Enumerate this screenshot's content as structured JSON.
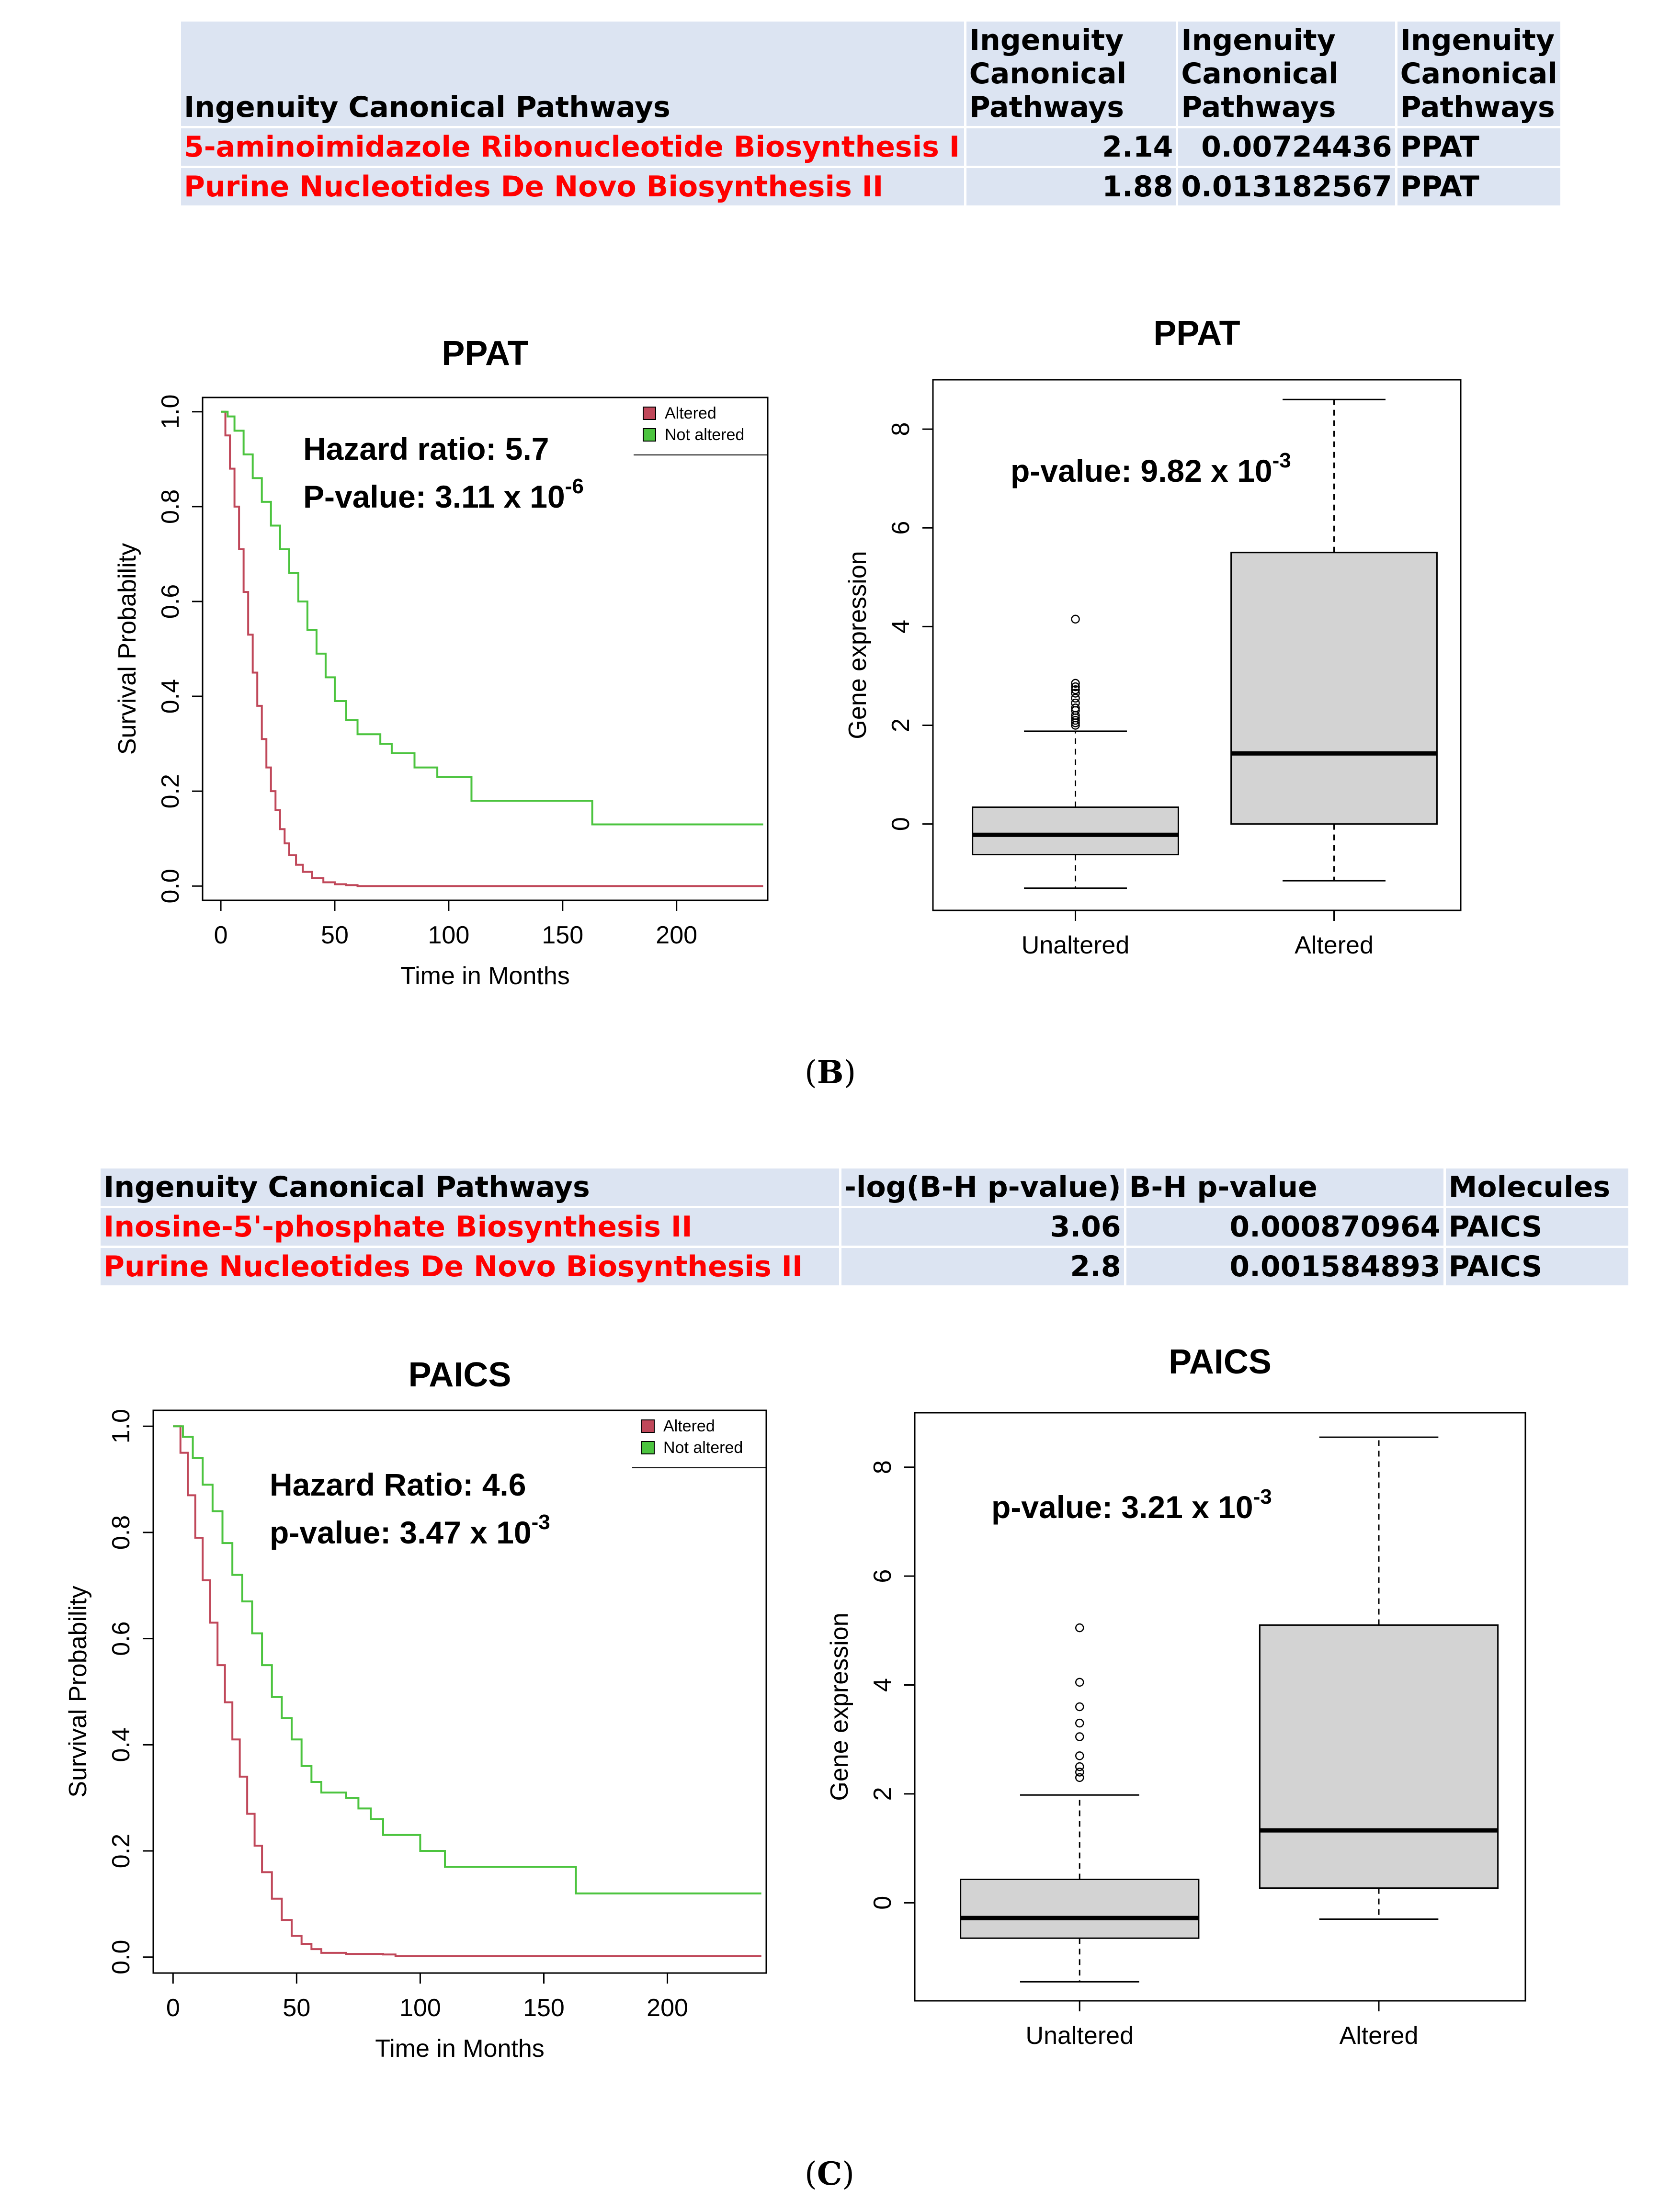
{
  "table_b": {
    "headers": [
      "Ingenuity Canonical Pathways",
      "Ingenuity\nCanonical\nPathways",
      "Ingenuity\nCanonical\nPathways",
      "Ingenuity\nCanonical\nPathways"
    ],
    "header_lines": {
      "col1": [
        "Ingenuity",
        "Canonical",
        "Pathways"
      ],
      "col2": [
        "Ingenuity",
        "Canonical",
        "Pathways"
      ],
      "col3": [
        "Ingenuity",
        "Canonical",
        "Pathways"
      ]
    },
    "rows": [
      {
        "pathway": "5-aminoimidazole Ribonucleotide Biosynthesis I",
        "score": "2.14",
        "pvalue": "0.00724436",
        "molecules": "PPAT"
      },
      {
        "pathway": "Purine Nucleotides De Novo Biosynthesis II",
        "score": "1.88",
        "pvalue": "0.013182567",
        "molecules": "PPAT"
      }
    ]
  },
  "table_c": {
    "headers": [
      "Ingenuity Canonical Pathways",
      "-log(B-H p-value)",
      "B-H p-value",
      "Molecules"
    ],
    "rows": [
      {
        "pathway": "Inosine-5'-phosphate Biosynthesis II",
        "score": "3.06",
        "pvalue": "0.000870964",
        "molecules": "PAICS"
      },
      {
        "pathway": "Purine Nucleotides De Novo Biosynthesis II",
        "score": "2.8",
        "pvalue": "0.001584893",
        "molecules": "PAICS"
      }
    ]
  },
  "labels": {
    "panel_b": "(B)",
    "panel_c": "(C)",
    "panel_b_letter": "B",
    "panel_c_letter": "C"
  },
  "colors": {
    "altered": "#c0485a",
    "not_altered": "#4cc43f",
    "box_fill": "#d3d3d3",
    "highlight_text": "#ff0000",
    "table_bg": "#dce4f2"
  },
  "chart_data": [
    {
      "id": "ppat_km",
      "type": "line",
      "title": "PPAT",
      "xlabel": "Time in Months",
      "ylabel": "Survival Probability",
      "xlim": [
        -8,
        240
      ],
      "ylim": [
        -0.03,
        1.03
      ],
      "x_ticks": [
        "0",
        "50",
        "100",
        "150",
        "200"
      ],
      "x_tick_values": [
        0,
        50,
        100,
        150,
        200
      ],
      "y_ticks": [
        "0.0",
        "0.2",
        "0.4",
        "0.6",
        "0.8",
        "1.0"
      ],
      "y_tick_values": [
        0,
        0.2,
        0.4,
        0.6,
        0.8,
        1.0
      ],
      "legend": [
        "Altered",
        "Not altered"
      ],
      "legend_position": "top-right",
      "annotations": [
        "Hazard ratio: 5.7",
        "P-value: 3.11 x 10"
      ],
      "pvalue_exponent": "-6",
      "series": [
        {
          "name": "Altered",
          "x": [
            0,
            2,
            4,
            6,
            8,
            10,
            12,
            14,
            16,
            18,
            20,
            22,
            24,
            26,
            28,
            30,
            33,
            36,
            40,
            45,
            50,
            55,
            60,
            80,
            120,
            180,
            238
          ],
          "y": [
            1.0,
            0.95,
            0.88,
            0.8,
            0.71,
            0.62,
            0.53,
            0.45,
            0.38,
            0.31,
            0.25,
            0.2,
            0.16,
            0.12,
            0.09,
            0.065,
            0.045,
            0.03,
            0.017,
            0.008,
            0.004,
            0.002,
            0.0,
            0.0,
            0.0,
            0.0,
            0.0
          ]
        },
        {
          "name": "Not altered",
          "x": [
            0,
            3,
            6,
            10,
            14,
            18,
            22,
            26,
            30,
            34,
            38,
            42,
            46,
            50,
            55,
            60,
            65,
            70,
            75,
            80,
            85,
            90,
            95,
            105,
            110,
            130,
            150,
            163,
            180,
            200,
            238
          ],
          "y": [
            1.0,
            0.99,
            0.96,
            0.91,
            0.86,
            0.81,
            0.76,
            0.71,
            0.66,
            0.6,
            0.54,
            0.49,
            0.44,
            0.39,
            0.35,
            0.32,
            0.32,
            0.3,
            0.28,
            0.28,
            0.25,
            0.25,
            0.23,
            0.23,
            0.18,
            0.18,
            0.18,
            0.13,
            0.13,
            0.13,
            0.13
          ]
        }
      ]
    },
    {
      "id": "ppat_box",
      "type": "box",
      "title": "PPAT",
      "xlabel": "",
      "ylabel": "Gene expression",
      "categories": [
        "Unaltered",
        "Altered"
      ],
      "ylim": [
        -1.75,
        9.0
      ],
      "y_ticks": [
        "0",
        "2",
        "4",
        "6",
        "8"
      ],
      "y_tick_values": [
        0,
        2,
        4,
        6,
        8
      ],
      "annotations": [
        "p-value: 9.82 x 10"
      ],
      "pvalue_exponent": "-3",
      "boxes": [
        {
          "name": "Unaltered",
          "whisker_low": -1.3,
          "q1": -0.62,
          "median": -0.22,
          "q3": 0.34,
          "whisker_high": 1.88,
          "outliers": [
            2.0,
            2.05,
            2.1,
            2.15,
            2.2,
            2.3,
            2.35,
            2.45,
            2.55,
            2.65,
            2.72,
            2.78,
            2.85,
            4.15
          ]
        },
        {
          "name": "Altered",
          "whisker_low": -1.15,
          "q1": 0.0,
          "median": 1.43,
          "q3": 5.5,
          "whisker_high": 8.6,
          "outliers": []
        }
      ]
    },
    {
      "id": "paics_km",
      "type": "line",
      "title": "PAICS",
      "xlabel": "Time in Months",
      "ylabel": "Survival Probability",
      "xlim": [
        -8,
        240
      ],
      "ylim": [
        -0.03,
        1.03
      ],
      "x_ticks": [
        "0",
        "50",
        "100",
        "150",
        "200"
      ],
      "x_tick_values": [
        0,
        50,
        100,
        150,
        200
      ],
      "y_ticks": [
        "0.0",
        "0.2",
        "0.4",
        "0.6",
        "0.8",
        "1.0"
      ],
      "y_tick_values": [
        0,
        0.2,
        0.4,
        0.6,
        0.8,
        1.0
      ],
      "legend": [
        "Altered",
        "Not altered"
      ],
      "legend_position": "top-right",
      "annotations": [
        "Hazard Ratio: 4.6",
        "p-value: 3.47 x 10"
      ],
      "pvalue_exponent": "-3",
      "series": [
        {
          "name": "Altered",
          "x": [
            0,
            3,
            6,
            9,
            12,
            15,
            18,
            21,
            24,
            27,
            30,
            33,
            36,
            40,
            44,
            48,
            52,
            56,
            60,
            70,
            85,
            90,
            120,
            180,
            238
          ],
          "y": [
            1.0,
            0.95,
            0.87,
            0.79,
            0.71,
            0.63,
            0.55,
            0.48,
            0.41,
            0.34,
            0.27,
            0.21,
            0.16,
            0.11,
            0.07,
            0.04,
            0.025,
            0.015,
            0.008,
            0.006,
            0.005,
            0.002,
            0.002,
            0.002,
            0.002
          ]
        },
        {
          "name": "Not altered",
          "x": [
            0,
            4,
            8,
            12,
            16,
            20,
            24,
            28,
            32,
            36,
            40,
            44,
            48,
            52,
            56,
            60,
            65,
            70,
            75,
            80,
            85,
            95,
            100,
            110,
            130,
            150,
            163,
            200,
            238
          ],
          "y": [
            1.0,
            0.98,
            0.94,
            0.89,
            0.84,
            0.78,
            0.72,
            0.67,
            0.61,
            0.55,
            0.49,
            0.45,
            0.41,
            0.36,
            0.33,
            0.31,
            0.31,
            0.3,
            0.28,
            0.26,
            0.23,
            0.23,
            0.2,
            0.17,
            0.17,
            0.17,
            0.12,
            0.12,
            0.12
          ]
        }
      ]
    },
    {
      "id": "paics_box",
      "type": "box",
      "title": "PAICS",
      "xlabel": "",
      "ylabel": "Gene expression",
      "categories": [
        "Unaltered",
        "Altered"
      ],
      "ylim": [
        -1.8,
        9.0
      ],
      "y_ticks": [
        "0",
        "2",
        "4",
        "6",
        "8"
      ],
      "y_tick_values": [
        0,
        2,
        4,
        6,
        8
      ],
      "annotations": [
        "p-value: 3.21 x 10"
      ],
      "pvalue_exponent": "-3",
      "boxes": [
        {
          "name": "Unaltered",
          "whisker_low": -1.45,
          "q1": -0.65,
          "median": -0.28,
          "q3": 0.43,
          "whisker_high": 1.98,
          "outliers": [
            2.3,
            2.4,
            2.5,
            2.7,
            3.05,
            3.3,
            3.6,
            4.05,
            5.05
          ]
        },
        {
          "name": "Altered",
          "whisker_low": -0.3,
          "q1": 0.27,
          "median": 1.33,
          "q3": 5.1,
          "whisker_high": 8.55,
          "outliers": []
        }
      ]
    }
  ]
}
